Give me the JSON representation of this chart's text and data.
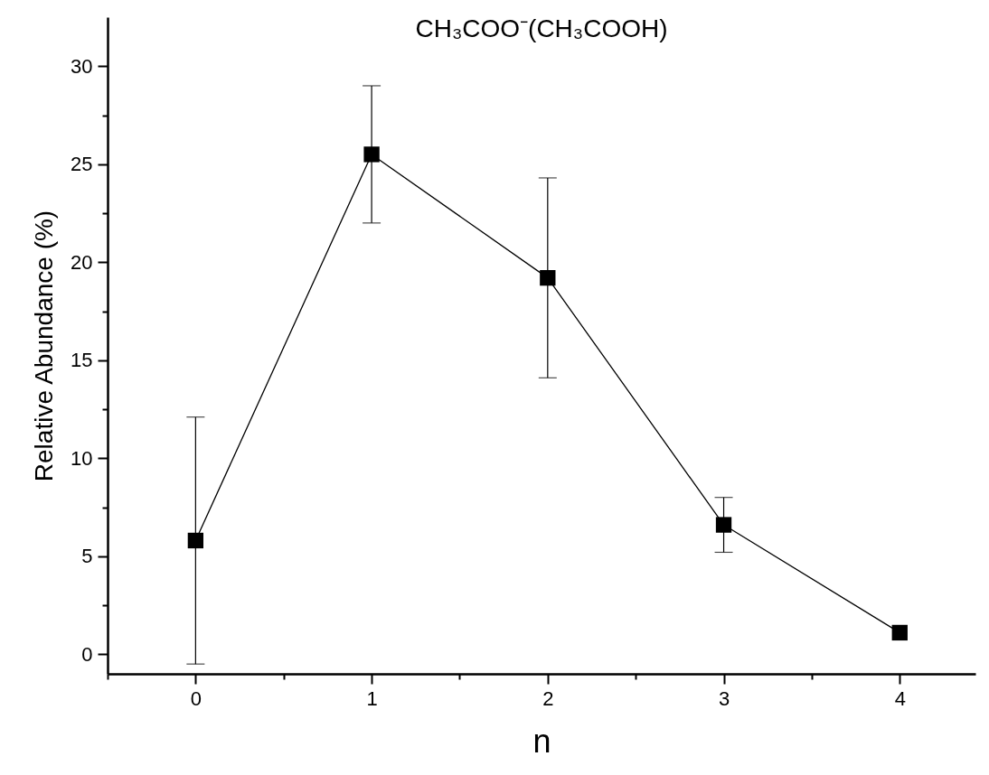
{
  "chart_data": {
    "type": "line",
    "title": "CH₃COO⁻(CH₃COOH)",
    "xlabel": "n",
    "ylabel": "Relative Abundance (%)",
    "x": [
      0,
      1,
      2,
      3,
      4
    ],
    "series": [
      {
        "color": "#000000",
        "values": [
          5.8,
          25.5,
          19.2,
          6.6,
          1.1
        ],
        "errors": [
          6.3,
          3.5,
          5.1,
          1.4,
          null
        ]
      }
    ],
    "xlim": [
      -0.5,
      4.43
    ],
    "ylim": [
      -1.0,
      32.5
    ],
    "xticks": [
      {
        "value": -0.5,
        "label": null
      },
      0,
      {
        "value": 0.5,
        "label": null
      },
      1,
      {
        "value": 1.5,
        "label": null
      },
      2,
      {
        "value": 2.5,
        "label": null
      },
      3,
      {
        "value": 3.5,
        "label": null
      },
      4
    ],
    "yticks": [
      0,
      {
        "value": 2.5,
        "label": null
      },
      5,
      {
        "value": 7.5,
        "label": null
      },
      10,
      {
        "value": 12.5,
        "label": null
      },
      15,
      {
        "value": 17.5,
        "label": null
      },
      20,
      {
        "value": 22.5,
        "label": null
      },
      25,
      {
        "value": 27.5,
        "label": null
      },
      30
    ],
    "marker": "square",
    "line_style": "solid",
    "grid": false
  }
}
